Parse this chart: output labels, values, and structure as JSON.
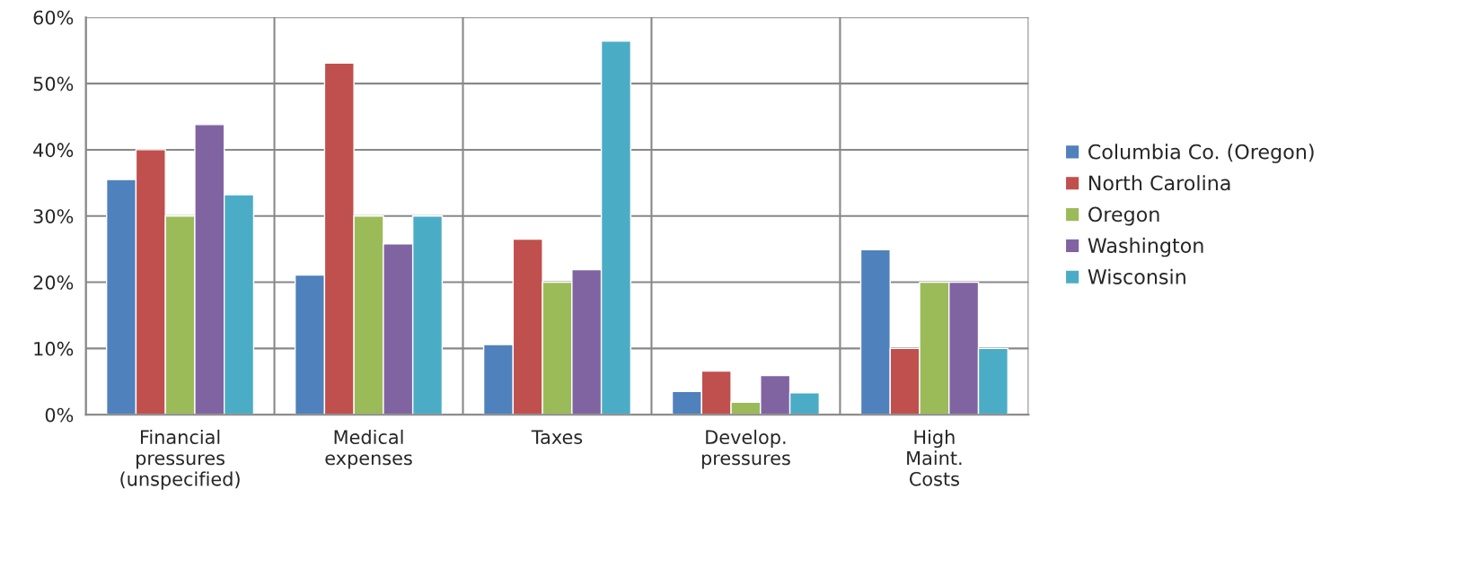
{
  "chart_data": {
    "type": "bar",
    "categories": [
      "Financial\npressures\n(unspecified)",
      "Medical\nexpenses",
      "Taxes",
      "Develop.\npressures",
      "High\nMaint.\nCosts"
    ],
    "series": [
      {
        "name": "Columbia Co. (Oregon)",
        "color": "#4f81bd",
        "values": [
          35.5,
          21.1,
          10.6,
          3.5,
          24.9
        ]
      },
      {
        "name": "North Carolina",
        "color": "#c0504d",
        "values": [
          40,
          53.1,
          26.5,
          6.6,
          10
        ]
      },
      {
        "name": "Oregon",
        "color": "#9bbb59",
        "values": [
          30,
          30,
          20,
          1.9,
          20
        ]
      },
      {
        "name": "Washington",
        "color": "#8064a2",
        "values": [
          43.8,
          25.8,
          21.9,
          5.9,
          20
        ]
      },
      {
        "name": "Wisconsin",
        "color": "#4bacc6",
        "values": [
          33.2,
          30,
          56.4,
          3.3,
          10
        ]
      }
    ],
    "ylim": [
      0,
      60
    ],
    "yticks": [
      {
        "value": 0,
        "label": "0%"
      },
      {
        "value": 10,
        "label": "10%"
      },
      {
        "value": 20,
        "label": "20%"
      },
      {
        "value": 30,
        "label": "30%"
      },
      {
        "value": 40,
        "label": "40%"
      },
      {
        "value": 50,
        "label": "50%"
      },
      {
        "value": 60,
        "label": "60%"
      }
    ],
    "grid": true,
    "legend": "right"
  }
}
